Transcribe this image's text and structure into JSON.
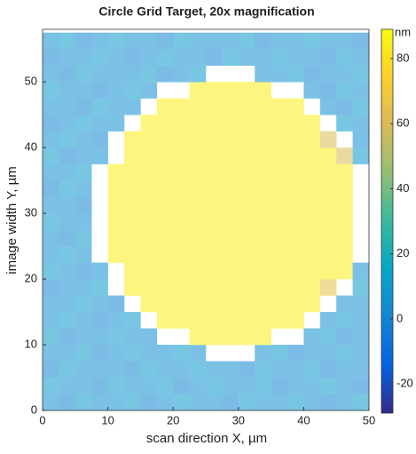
{
  "chart_data": {
    "type": "heatmap",
    "title": "Circle Grid Target, 20x magnification",
    "xlabel": "scan direction X, µm",
    "ylabel": "image width Y, µm",
    "colormap": "parula",
    "colorbar_label": "nm",
    "clim": [
      -29,
      89
    ],
    "cticks": [
      -20,
      0,
      20,
      40,
      60,
      80
    ],
    "xlim": [
      0,
      50
    ],
    "ylim": [
      0,
      58
    ],
    "xticks": [
      0,
      10,
      20,
      30,
      40,
      50
    ],
    "yticks": [
      0,
      10,
      20,
      30,
      40,
      50
    ],
    "x": [
      1.25,
      3.75,
      6.25,
      8.75,
      11.25,
      13.75,
      16.25,
      18.75,
      21.25,
      23.75,
      26.25,
      28.75,
      31.25,
      33.75,
      36.25,
      38.75,
      41.25,
      43.75,
      46.25,
      48.75
    ],
    "y": [
      1.25,
      3.75,
      6.25,
      8.75,
      11.25,
      13.75,
      16.25,
      18.75,
      21.25,
      23.75,
      26.25,
      28.75,
      31.25,
      33.75,
      36.25,
      38.75,
      41.25,
      43.75,
      46.25,
      48.75,
      51.25,
      53.75,
      56.25
    ],
    "z": [
      [
        5,
        0,
        10,
        5,
        5,
        10,
        0,
        5,
        10,
        5,
        5,
        0,
        10,
        5,
        5,
        10,
        5,
        0,
        5,
        10
      ],
      [
        10,
        5,
        5,
        0,
        10,
        5,
        5,
        10,
        0,
        5,
        10,
        5,
        5,
        10,
        0,
        5,
        5,
        10,
        5,
        0
      ],
      [
        0,
        10,
        5,
        5,
        5,
        0,
        10,
        5,
        5,
        10,
        5,
        5,
        0,
        10,
        5,
        5,
        10,
        0,
        5,
        5
      ],
      [
        5,
        5,
        10,
        0,
        5,
        10,
        5,
        5,
        10,
        5,
        null,
        null,
        null,
        5,
        10,
        0,
        5,
        5,
        10,
        5
      ],
      [
        10,
        0,
        5,
        5,
        10,
        5,
        5,
        null,
        null,
        85,
        85,
        85,
        85,
        85,
        null,
        null,
        5,
        10,
        0,
        5
      ],
      [
        5,
        10,
        5,
        0,
        5,
        10,
        null,
        85,
        85,
        85,
        85,
        85,
        85,
        85,
        85,
        85,
        null,
        5,
        10,
        5
      ],
      [
        5,
        5,
        10,
        5,
        0,
        null,
        85,
        85,
        85,
        85,
        85,
        85,
        85,
        85,
        85,
        85,
        85,
        null,
        5,
        5
      ],
      [
        0,
        5,
        5,
        10,
        null,
        85,
        85,
        85,
        85,
        85,
        85,
        85,
        85,
        85,
        85,
        85,
        85,
        65,
        null,
        10
      ],
      [
        10,
        5,
        0,
        5,
        null,
        85,
        85,
        85,
        85,
        85,
        85,
        85,
        85,
        85,
        85,
        85,
        85,
        85,
        85,
        5
      ],
      [
        5,
        10,
        5,
        null,
        85,
        85,
        85,
        85,
        85,
        85,
        85,
        85,
        85,
        85,
        85,
        85,
        85,
        85,
        85,
        null
      ],
      [
        5,
        0,
        10,
        null,
        85,
        85,
        85,
        85,
        85,
        85,
        85,
        85,
        85,
        85,
        85,
        85,
        85,
        85,
        85,
        null
      ],
      [
        10,
        5,
        5,
        null,
        85,
        85,
        85,
        85,
        85,
        85,
        85,
        85,
        85,
        85,
        85,
        85,
        85,
        85,
        85,
        null
      ],
      [
        5,
        5,
        0,
        null,
        85,
        85,
        85,
        85,
        85,
        85,
        85,
        85,
        85,
        85,
        85,
        85,
        85,
        85,
        85,
        null
      ],
      [
        0,
        10,
        5,
        null,
        85,
        85,
        85,
        85,
        85,
        85,
        85,
        85,
        85,
        85,
        85,
        85,
        85,
        85,
        85,
        null
      ],
      [
        5,
        5,
        10,
        null,
        85,
        85,
        85,
        85,
        85,
        85,
        85,
        85,
        85,
        85,
        85,
        85,
        85,
        85,
        85,
        null
      ],
      [
        10,
        0,
        5,
        5,
        null,
        85,
        85,
        85,
        85,
        85,
        85,
        85,
        85,
        85,
        85,
        85,
        85,
        85,
        60,
        10
      ],
      [
        5,
        10,
        5,
        0,
        null,
        85,
        85,
        85,
        85,
        85,
        85,
        85,
        85,
        85,
        85,
        85,
        85,
        60,
        null,
        5
      ],
      [
        0,
        5,
        10,
        5,
        5,
        null,
        85,
        85,
        85,
        85,
        85,
        85,
        85,
        85,
        85,
        85,
        85,
        null,
        10,
        5
      ],
      [
        5,
        5,
        0,
        10,
        5,
        5,
        null,
        85,
        85,
        85,
        85,
        85,
        85,
        85,
        85,
        85,
        null,
        5,
        0,
        10
      ],
      [
        10,
        5,
        5,
        0,
        5,
        10,
        5,
        null,
        null,
        85,
        85,
        85,
        85,
        85,
        null,
        null,
        5,
        0,
        10,
        5
      ],
      [
        5,
        0,
        10,
        5,
        5,
        5,
        10,
        0,
        5,
        10,
        null,
        null,
        null,
        5,
        5,
        10,
        0,
        5,
        5,
        10
      ],
      [
        0,
        5,
        5,
        10,
        5,
        0,
        5,
        10,
        5,
        5,
        0,
        10,
        5,
        5,
        10,
        5,
        5,
        0,
        10,
        5
      ],
      [
        5,
        10,
        0,
        5,
        10,
        5,
        5,
        0,
        10,
        5,
        5,
        5,
        10,
        0,
        5,
        5,
        10,
        5,
        5,
        0
      ]
    ]
  }
}
